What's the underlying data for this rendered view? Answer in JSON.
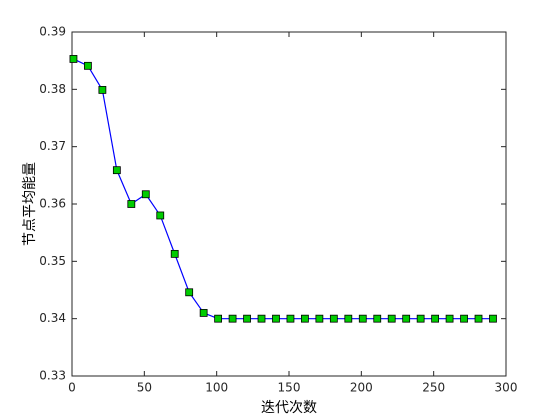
{
  "chart_data": {
    "type": "line",
    "xlabel": "迭代次数",
    "ylabel": "节点平均能量",
    "x": [
      1,
      11,
      21,
      31,
      41,
      51,
      61,
      71,
      81,
      91,
      101,
      111,
      121,
      131,
      141,
      151,
      161,
      171,
      181,
      191,
      201,
      211,
      221,
      231,
      241,
      251,
      261,
      271,
      281,
      291
    ],
    "series": [
      {
        "color": "#0000ff",
        "marker_color": "#00cc00",
        "values": [
          0.3853,
          0.3841,
          0.3799,
          0.3659,
          0.36,
          0.3617,
          0.358,
          0.3513,
          0.3446,
          0.341,
          0.34,
          0.34,
          0.34,
          0.34,
          0.34,
          0.34,
          0.34,
          0.34,
          0.34,
          0.34,
          0.34,
          0.34,
          0.34,
          0.34,
          0.34,
          0.34,
          0.34,
          0.34,
          0.34,
          0.34
        ]
      }
    ],
    "xlim": [
      0,
      300
    ],
    "xticks": [
      0,
      50,
      100,
      150,
      200,
      250,
      300
    ],
    "ylim": [
      0.33,
      0.39
    ],
    "yticks": [
      0.33,
      0.34,
      0.35,
      0.36,
      0.37,
      0.38,
      0.39
    ],
    "grid": false
  }
}
